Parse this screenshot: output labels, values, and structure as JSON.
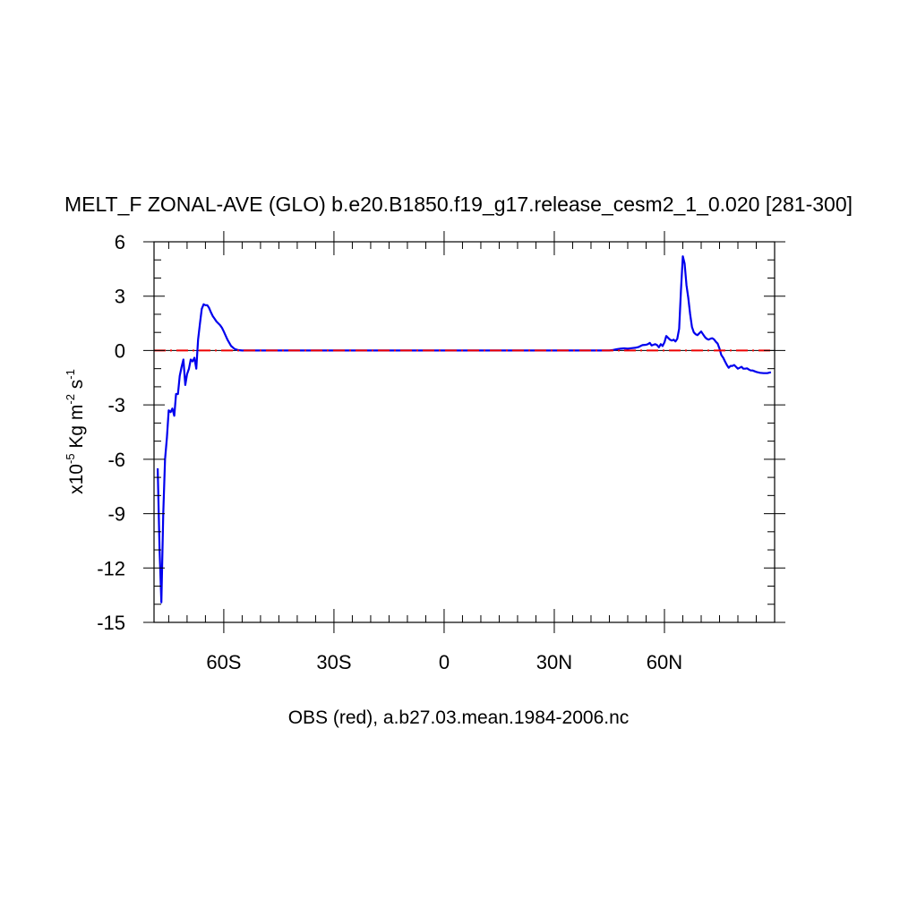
{
  "chart_data": {
    "type": "line",
    "title": "MELT_F ZONAL-AVE (GLO) b.e20.B1850.f19_g17.release_cesm2_1_0.020 [281-300]",
    "ylabel": {
      "prefix": "x10",
      "exponent": "-5",
      "units_a": " Kg m",
      "units_a_exp": "-2",
      "units_b": " s",
      "units_b_exp": "-1"
    },
    "xlabel": "OBS (red), a.b27.03.mean.1984-2006.nc",
    "xlim": [
      -79,
      90
    ],
    "ylim": [
      -15,
      6
    ],
    "x_ticks": [
      {
        "value": -60,
        "label": "60S"
      },
      {
        "value": -30,
        "label": "30S"
      },
      {
        "value": 0,
        "label": "0"
      },
      {
        "value": 30,
        "label": "30N"
      },
      {
        "value": 60,
        "label": "60N"
      }
    ],
    "y_ticks": [
      {
        "value": 6,
        "label": "6"
      },
      {
        "value": 3,
        "label": "3"
      },
      {
        "value": 0,
        "label": "0"
      },
      {
        "value": -3,
        "label": "-3"
      },
      {
        "value": -6,
        "label": "-6"
      },
      {
        "value": -9,
        "label": "-9"
      },
      {
        "value": -12,
        "label": "-12"
      },
      {
        "value": -15,
        "label": "-15"
      }
    ],
    "series": [
      {
        "color": "#0000ee",
        "style": "solid",
        "x": [
          -78,
          -77.5,
          -77,
          -76.5,
          -76,
          -75.5,
          -75,
          -74.5,
          -74,
          -73.5,
          -73,
          -72.5,
          -72,
          -71.5,
          -71,
          -70.5,
          -70,
          -69.5,
          -69,
          -68.5,
          -68,
          -67.5,
          -67,
          -66.5,
          -66,
          -65.5,
          -65,
          -64.5,
          -64,
          -63.5,
          -63,
          -62.5,
          -62,
          -61.5,
          -61,
          -60.5,
          -60,
          -59,
          -58,
          -57,
          -56,
          -55,
          -54,
          -53,
          -52,
          -51,
          -50,
          -40,
          -30,
          -20,
          -10,
          0,
          10,
          20,
          30,
          40,
          45,
          46,
          47,
          48,
          49,
          50,
          51,
          52,
          53,
          54,
          55,
          55.5,
          56,
          56.5,
          57,
          57.5,
          58,
          58.5,
          59,
          59.5,
          60,
          60.5,
          61,
          61.5,
          62,
          62.5,
          63,
          63.5,
          64,
          64.5,
          65,
          65.5,
          66,
          66.5,
          67,
          67.5,
          68,
          68.5,
          69,
          69.5,
          70,
          70.5,
          71,
          71.5,
          72,
          72.5,
          73,
          73.5,
          74,
          74.5,
          75,
          75.5,
          76,
          76.5,
          77,
          77.5,
          78,
          78.5,
          79,
          79.5,
          80,
          80.5,
          81,
          81.5,
          82,
          82.5,
          83,
          83.5,
          84,
          85,
          86,
          87,
          88,
          89
        ],
        "y": [
          -6.5,
          -11,
          -13.9,
          -9,
          -6,
          -4.8,
          -3.3,
          -3.4,
          -3.2,
          -3.6,
          -2.4,
          -2.4,
          -1.4,
          -0.9,
          -0.5,
          -1.9,
          -1.3,
          -1.0,
          -0.5,
          -0.6,
          -0.4,
          -1.0,
          0.6,
          1.5,
          2.3,
          2.55,
          2.5,
          2.5,
          2.35,
          2.1,
          1.9,
          1.75,
          1.6,
          1.5,
          1.4,
          1.25,
          1.05,
          0.6,
          0.25,
          0.08,
          0.02,
          0,
          0,
          0,
          0,
          0,
          0,
          0,
          0,
          0,
          0,
          0,
          0,
          0,
          0,
          0,
          0,
          0.03,
          0.07,
          0.1,
          0.12,
          0.1,
          0.13,
          0.15,
          0.2,
          0.3,
          0.32,
          0.35,
          0.42,
          0.28,
          0.32,
          0.35,
          0.3,
          0.18,
          0.35,
          0.25,
          0.45,
          0.8,
          0.7,
          0.6,
          0.55,
          0.6,
          0.5,
          0.65,
          1.2,
          3.3,
          5.2,
          4.8,
          3.6,
          2.9,
          2.0,
          1.3,
          1.0,
          0.9,
          0.85,
          0.95,
          1.05,
          0.9,
          0.75,
          0.65,
          0.6,
          0.65,
          0.68,
          0.62,
          0.48,
          0.38,
          0.1,
          -0.25,
          -0.4,
          -0.6,
          -0.8,
          -0.95,
          -0.85,
          -0.85,
          -0.8,
          -0.9,
          -1.0,
          -0.95,
          -0.9,
          -1.0,
          -1.0,
          -0.98,
          -1.05,
          -1.1,
          -1.1,
          -1.18,
          -1.23,
          -1.25,
          -1.25,
          -1.2
        ]
      },
      {
        "color": "#ee0000",
        "style": "dashed",
        "x": [
          -79,
          90
        ],
        "y": [
          0,
          0
        ]
      }
    ]
  }
}
